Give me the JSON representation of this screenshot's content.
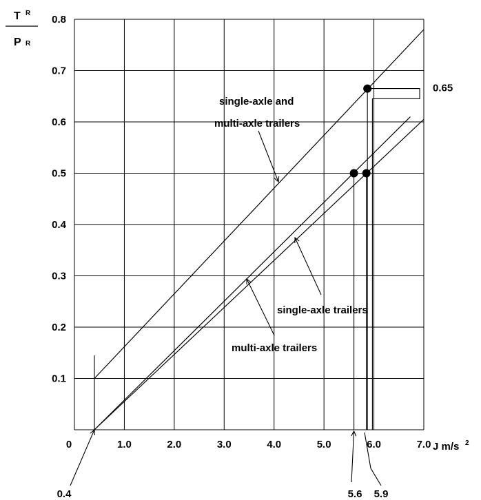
{
  "chart_data": {
    "type": "line",
    "title": "",
    "ylabel_num": "T",
    "ylabel_num_sub": "R",
    "ylabel_den": "P",
    "ylabel_den_sub": "R",
    "xlabel_text": "J m/s",
    "xlabel_sup": "2",
    "xlim": [
      0,
      7.0
    ],
    "ylim": [
      0,
      0.8
    ],
    "grid": true,
    "x_ticks": [
      "0",
      "1.0",
      "2.0",
      "3.0",
      "4.0",
      "5.0",
      "6.0",
      "7.0"
    ],
    "y_ticks": [
      "0.1",
      "0.2",
      "0.3",
      "0.4",
      "0.5",
      "0.6",
      "0.7",
      "0.8"
    ],
    "series": [
      {
        "name": "single-axle and multi-axle trailers",
        "x": [
          0.4,
          7.0
        ],
        "y": [
          0.1,
          0.78
        ]
      },
      {
        "name": "single-axle trailers",
        "x": [
          0.4,
          6.73
        ],
        "y": [
          0.0,
          0.61
        ]
      },
      {
        "name": "multi-axle trailers",
        "x": [
          0.4,
          7.0
        ],
        "y": [
          0.0,
          0.605
        ]
      }
    ],
    "markers": [
      {
        "x": 5.87,
        "y": 0.665
      },
      {
        "x": 5.6,
        "y": 0.5
      },
      {
        "x": 5.85,
        "y": 0.5
      }
    ],
    "annotations": {
      "value_065": "0.65",
      "label_both": "single-axle and",
      "label_both_2": "multi-axle trailers",
      "label_single": "single-axle trailers",
      "label_multi": "multi-axle trailers",
      "x_04": "0.4",
      "x_56": "5.6",
      "x_59": "5.9"
    }
  }
}
